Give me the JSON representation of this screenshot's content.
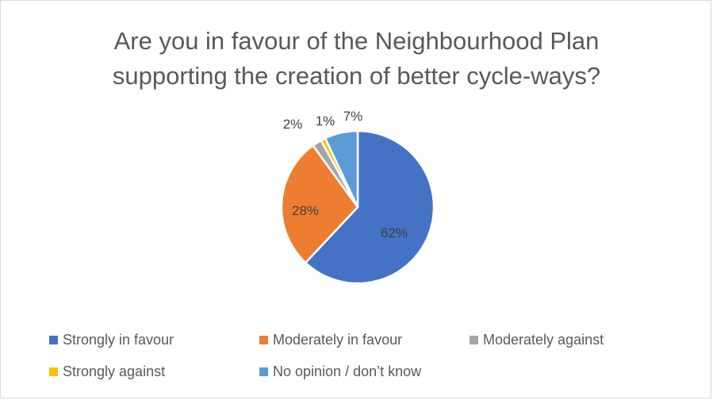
{
  "chart_data": {
    "type": "pie",
    "title_line1": "Are you in favour of the Neighbourhood Plan",
    "title_line2": "supporting the creation of better cycle-ways?",
    "slices": [
      {
        "name": "Strongly in favour",
        "value": 62,
        "label": "62%",
        "color": "#4472C4"
      },
      {
        "name": "Moderately in favour",
        "value": 28,
        "label": "28%",
        "color": "#ED7D31"
      },
      {
        "name": "Moderately against",
        "value": 2,
        "label": "2%",
        "color": "#A5A5A5"
      },
      {
        "name": "Strongly against",
        "value": 1,
        "label": "1%",
        "color": "#FFC000"
      },
      {
        "name": "No opinion / don’t know",
        "value": 7,
        "label": "7%",
        "color": "#5B9BD5"
      }
    ],
    "legend_position": "bottom"
  }
}
